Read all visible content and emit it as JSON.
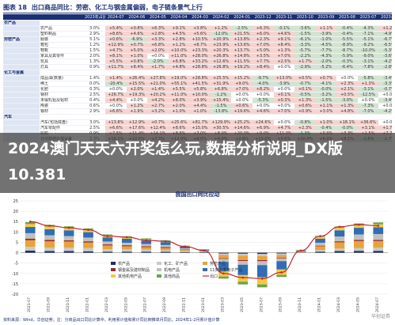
{
  "header": {
    "fig_no": "图表 18",
    "title": "出口商品同比：劳密、化工与钢金属偏弱，电子链条景气上行"
  },
  "table": {
    "top_header": "2023年占比",
    "months": [
      "2024-07",
      "2024-06",
      "2024-05",
      "2024-04",
      "2024-03",
      "2024-02",
      "2024-01",
      "2023-12",
      "2023-11",
      "2023-10",
      "2023-09",
      "2023-08",
      "2023-07",
      "2023-06"
    ],
    "rows": [
      {
        "cat": "农产品",
        "name": "",
        "share": "",
        "vals": [
          "",
          "",
          "",
          "",
          "",
          "",
          "",
          "",
          "",
          "",
          "",
          "",
          "",
          ""
        ]
      },
      {
        "cat": "",
        "name": "农产品",
        "share": "3.0%",
        "vals": [
          "+5.4%",
          "+0.8%",
          "+6.3%",
          "+9.1%",
          "+3.8%",
          "+1.2%",
          "-2.5%",
          "+6.3%",
          "-0.1%",
          "-3.6%",
          "+1.1%",
          "-0.4%",
          "-4.3%",
          "+1.2%"
        ]
      },
      {
        "cat": "",
        "name": "塑料制品",
        "share": "2.9%",
        "vals": [
          "+8.6%",
          "+4.6%",
          "+2.8%",
          "+4.5%",
          "+5.6%",
          "-12.0%",
          "+21.5%",
          "+6.0%",
          "+4.6%",
          "-1.5%",
          "-3.9%",
          "-0.4%",
          "-7.1%",
          "-4.9%"
        ]
      },
      {
        "cat": "劳密产品",
        "name": "服装",
        "share": "5.1%",
        "vals": [
          "+0.6%",
          "-6.9%",
          "+3.3%",
          "+2.8%",
          "+10.5%",
          "+20.9%",
          "+13.8%",
          "+2.3%",
          "+9.1%",
          "-6.1%",
          "-1.0%",
          "-5.5%",
          "-5.1%",
          "-6.7%"
        ]
      },
      {
        "cat": "",
        "name": "箱包",
        "share": "1.2%",
        "vals": [
          "+12.9%",
          "+0.7%",
          "+6.8%",
          "+1.2%",
          "+8.7%",
          "+23.9%",
          "+13.6%",
          "+7.0%",
          "+8.4%",
          "-3.3%",
          "-4.5%",
          "-8.9%",
          "-9.2%",
          "-6.5%"
        ]
      },
      {
        "cat": "",
        "name": "鞋靴",
        "share": "1.5%",
        "vals": [
          "+4.7%",
          "+5.0%",
          "+2.0%",
          "+10.0%",
          "+23.3%",
          "+20.3%",
          "+13.7%",
          "+5.0%",
          "+1.3%",
          "-5.7%",
          "-7.7%",
          "-8.7%",
          "-10.0%",
          "-5.3%"
        ]
      },
      {
        "cat": "",
        "name": "家具及其零件",
        "share": "2.0%",
        "vals": [
          "+8.1%",
          "+1.0%",
          "+0.0%",
          "+11.0%",
          "+28.0%",
          "+26.8%",
          "+14.8%",
          "+3.5%",
          "+7.0%",
          "-2.2%",
          "-4.3%",
          "-5.9%",
          "-9.0%",
          "-3.6%"
        ]
      },
      {
        "cat": "",
        "name": "玩具",
        "share": "1.3%",
        "vals": [
          "+5.5%",
          "+0.8%",
          "-2.0%",
          "+6.8%",
          "+33.2%",
          "+12.6%",
          "+11.5%",
          "+7.7%",
          "+2.5%",
          "+1.7%",
          "-2.0%",
          "-0.3%",
          "-3.1%",
          "-4.2%"
        ]
      },
      {
        "cat": "",
        "name": "灯具",
        "share": "0.9%",
        "vals": [
          "+11.7%",
          "+8.4%",
          "+1.7%",
          "+4.8%",
          "+28.8%",
          "+26.8%",
          "+19.2%",
          "+8.4%",
          "+0.0%",
          "-2.9%",
          "-5.2%",
          "-6.4%",
          "-7.8%",
          "-2.8%"
        ]
      },
      {
        "cat": "化工与金属",
        "name": "",
        "share": "",
        "vals": [
          "",
          "",
          "",
          "",
          "",
          "",
          "",
          "",
          "",
          "",
          "",
          "",
          "",
          ""
        ]
      },
      {
        "cat": "",
        "name": "成品油(数量)",
        "share": "1.4%",
        "vals": [
          "+1.4%",
          "+26.4%",
          "+27.8%",
          "+19.0%",
          "+28.8%",
          "+25.5%",
          "+15.2%",
          "-9.7%",
          "+13.0%",
          "+0.5%",
          "+0.7%",
          "+0.0%",
          "-5.8%",
          "-3.4%"
        ]
      },
      {
        "cat": "",
        "name": "稀土",
        "share": "0.0%",
        "vals": [
          "-20.4%",
          "+15.5%",
          "+21.0%",
          "+55.1%",
          "+41.5%",
          "+31.9%",
          "+9.0%",
          "-4.0%",
          "-3.9%",
          "-0.7%",
          "-4.1%",
          "+2.3%",
          "+1.3%",
          "-3.3%"
        ]
      },
      {
        "cat": "",
        "name": "化肥",
        "share": "0.3%",
        "vals": [
          "+0.0%",
          "+2.0%",
          "+1.4%",
          "+5.5%",
          "+5.8%",
          "+6.8%",
          "+7.0%",
          "+8.2%",
          "+0.0%",
          "+0.1%",
          "-0.0%",
          "+2.1%",
          "-3.1%",
          "-0.7%"
        ]
      },
      {
        "cat": "",
        "name": "钢材",
        "share": "2.5%",
        "vals": [
          "+26.7%",
          "+19.3%",
          "+20.2%",
          "+11.0%",
          "+10.0%",
          "-1.2%",
          "+0.0%",
          "+0.0%",
          "+0.1%",
          "-0.5%",
          "-3.2%",
          "+0.5%",
          "-12.5%",
          "+0.0%"
        ]
      },
      {
        "cat": "",
        "name": "未锻轧铝及铝材",
        "share": "0.4%",
        "vals": [
          "+4.4%",
          "+0.0%",
          "+4.2%",
          "+8.0%",
          "+3.9%",
          "+15.4%",
          "+0.0%",
          "-5.3%",
          "+0.3%",
          "+1.3%",
          "-1.5%",
          "-3.0%",
          "+0.0%",
          "-3.4%"
        ]
      },
      {
        "cat": "",
        "name": "陶瓷",
        "share": "0.6%",
        "vals": [
          "+0.0%",
          "+1.2%",
          "+2.7%",
          "+2.0%",
          "+4.4%",
          "-1.5%",
          "+0.6%",
          "+0.0%",
          "+0.0%",
          "+0.6%",
          "+1.1%",
          "+1.3%",
          "-7.3%",
          "+0.0%"
        ]
      },
      {
        "cat": "",
        "name": "钢材",
        "share": "2.9%",
        "vals": [
          "+6.6%",
          "+1.9%",
          "+3.2%",
          "+1.0%",
          "+1.0%",
          "-13.8%",
          "+19.6%",
          "+4.6%",
          "+7.0%",
          "+0.9%",
          "+3.0%",
          "+4.8%",
          "-7.0%",
          "-4.2%"
        ]
      },
      {
        "cat": "汽车",
        "name": "",
        "share": "",
        "vals": [
          "",
          "",
          "",
          "",
          "",
          "",
          "",
          "",
          "",
          "",
          "",
          "",
          "",
          ""
        ]
      },
      {
        "cat": "",
        "name": "汽车(包括底盘)",
        "share": "3.0%",
        "vals": [
          "+13.8%",
          "+12.9%",
          "+0.7%",
          "+25.6%",
          "+81.7%",
          "+129.9%",
          "+25.2%",
          "+24.6%",
          "+0.0%",
          "-0.8%",
          "+1.0%",
          "+18.1%",
          "+36.6%",
          "+0.0%"
        ]
      },
      {
        "cat": "",
        "name": "汽车零配件",
        "share": "2.5%",
        "vals": [
          "+6.6%",
          "+17.6%",
          "+12.4%",
          "+8.6%",
          "+15.0%",
          "+30.5%",
          "+14.6%",
          "+6.9%",
          "+4.7%",
          "+2.3%",
          "-0.4%",
          "-0.0%",
          "+3.1%",
          "+1.7%"
        ]
      },
      {
        "cat": "",
        "name": "船舶",
        "share": "0.9%",
        "vals": [
          "+7.5%",
          "+11.4%",
          "+14.1%",
          "+8.6%",
          "+7.0%",
          "+8.0%",
          "+20.0%",
          "+9.0%",
          "+11.0%",
          "-1.3%",
          "+0.9%",
          "+3.3%",
          "+1.5%",
          "+7.7%"
        ]
      },
      {
        "cat": "",
        "name": "自动数据处理设备",
        "share": "2.3%",
        "vals": [
          "+18.1%",
          "+12.5%",
          "+7.3%",
          "+12.0%",
          "+4.0%",
          "+4.0%",
          "+2.8%",
          "+13.0%",
          "+5.6%",
          "+10.0%",
          "+6.0%",
          "+8.1%",
          "-1.6%",
          "-1.7%"
        ]
      }
    ]
  },
  "banner": {
    "text": "2024澳门天天六开奖怎么玩,数据分析说明_DX版10.381"
  },
  "chart_data": {
    "type": "bar",
    "title": "我国出口同比拉动",
    "categories": [
      "2021-07",
      "2021-09",
      "2021-11",
      "2022-01",
      "2022-03",
      "2022-05",
      "2022-07",
      "2022-09",
      "2022-11",
      "2023-01",
      "2023-03",
      "2023-05",
      "2023-07",
      "2023-09",
      "2023-11",
      "2024-01",
      "2024-03",
      "2024-05",
      "2024-07"
    ],
    "ylim": [
      -20,
      25
    ],
    "yticks": [
      -20,
      -15,
      -10,
      -5,
      0,
      5,
      10,
      15,
      20,
      25
    ],
    "series": [
      {
        "name": "农产品",
        "color": "#1b2f73",
        "values": [
          1.0,
          0.8,
          0.8,
          0.7,
          0.5,
          0.5,
          0.5,
          0.4,
          0.3,
          0.2,
          -0.4,
          -0.5,
          -0.6,
          -0.4,
          0.1,
          0.5,
          0.8,
          0.9,
          0.9
        ]
      },
      {
        "name": "化工、矿产品",
        "color": "#c9c9c9",
        "values": [
          1.8,
          1.6,
          1.6,
          1.5,
          1.2,
          1.1,
          1.0,
          0.8,
          0.5,
          0.3,
          -0.7,
          -0.9,
          -1.0,
          -0.7,
          0.1,
          0.8,
          1.2,
          1.4,
          1.5
        ]
      },
      {
        "name": "劳密产品",
        "color": "#e8a33a",
        "values": [
          3.2,
          3.1,
          3.0,
          2.7,
          1.8,
          1.5,
          1.2,
          1.1,
          0.6,
          0.3,
          -1.6,
          -2.2,
          -2.0,
          -1.4,
          0.2,
          1.8,
          3.0,
          3.3,
          3.2
        ]
      },
      {
        "name": "钢金属及建材制品",
        "color": "#9b2a2a",
        "values": [
          0.8,
          0.7,
          0.6,
          0.6,
          0.5,
          0.5,
          0.4,
          0.4,
          0.2,
          0.1,
          -0.3,
          -0.4,
          -0.5,
          -0.3,
          0.1,
          0.3,
          0.5,
          0.6,
          0.6
        ]
      },
      {
        "name": "机电产品",
        "color": "#c0c0c0",
        "values": [
          2.6,
          2.2,
          2.0,
          1.8,
          1.4,
          1.2,
          1.1,
          1.0,
          0.5,
          0.2,
          -1.4,
          -1.8,
          -1.9,
          -1.3,
          0.2,
          1.4,
          2.3,
          2.6,
          2.8
        ]
      },
      {
        "name": "11类主要电子产品",
        "color": "#2f6db5",
        "values": [
          3.0,
          2.9,
          2.8,
          2.6,
          2.0,
          1.9,
          1.6,
          1.4,
          0.8,
          0.4,
          -4.5,
          -5.0,
          -5.8,
          -4.0,
          0.4,
          2.0,
          3.0,
          3.2,
          3.3
        ]
      },
      {
        "name": "其他机电产品",
        "color": "#f5c842",
        "values": [
          1.4,
          1.3,
          1.2,
          1.1,
          0.9,
          0.8,
          0.7,
          0.6,
          0.3,
          0.1,
          -2.6,
          -3.2,
          -3.5,
          -2.6,
          0.2,
          0.9,
          1.2,
          1.3,
          1.4
        ]
      },
      {
        "name": "其他商品",
        "color": "#6ba34a",
        "values": [
          0.9,
          0.8,
          0.7,
          0.7,
          0.5,
          0.4,
          0.4,
          0.3,
          0.2,
          0.1,
          -1.0,
          -1.3,
          -1.4,
          -1.0,
          0.1,
          0.4,
          0.6,
          0.8,
          0.9
        ]
      }
    ],
    "line": {
      "name": "出口",
      "color": "#c1272d",
      "values": [
        15.0,
        13.0,
        12.0,
        11.0,
        8.0,
        7.5,
        6.0,
        5.5,
        3.0,
        1.0,
        -10.0,
        -12.0,
        -12.5,
        -9.5,
        1.0,
        8.0,
        12.5,
        13.5,
        13.0
      ]
    }
  },
  "footer": {
    "source": "资料来源：Wind，华创证券；注：分商品出口同比计算中，利用累计值和累计同比倒推单月同比，2024年1-2月累计值计算"
  },
  "watermark": "华创证券"
}
